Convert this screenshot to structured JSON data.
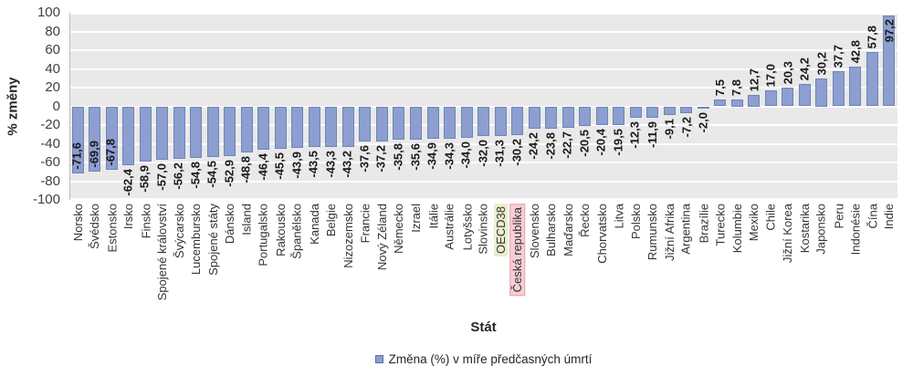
{
  "chart_data": {
    "type": "bar",
    "title": "",
    "xlabel": "Stát",
    "ylabel": "% změny",
    "ylim": [
      -100,
      100
    ],
    "yticks": [
      100,
      80,
      60,
      40,
      20,
      0,
      -20,
      -40,
      -60,
      -80,
      -100
    ],
    "grid": "horizontal-white-on-gray",
    "legend": [
      "Změna (%) v míře předčasných úmrtí"
    ],
    "legend_position": "bottom-center",
    "value_label_decimal": ",",
    "categories": [
      "Norsko",
      "Švédsko",
      "Estonsko",
      "Irsko",
      "Finsko",
      "Spojené království",
      "Švýcarsko",
      "Lucembursko",
      "Spojené státy",
      "Dánsko",
      "Island",
      "Portugalsko",
      "Rakousko",
      "Španělsko",
      "Kanada",
      "Belgie",
      "Nizozemsko",
      "Francie",
      "Nový Zéland",
      "Německo",
      "Izrael",
      "Itálie",
      "Austrálie",
      "Lotyšsko",
      "Slovinsko",
      "OECD38",
      "Česká republika",
      "Slovensko",
      "Bulharsko",
      "Maďarsko",
      "Řecko",
      "Chorvatsko",
      "Litva",
      "Polsko",
      "Rumunsko",
      "Jižní Afrika",
      "Argentina",
      "Brazílie",
      "Turecko",
      "Kolumbie",
      "Mexiko",
      "Chile",
      "Jižní Korea",
      "Kostarika",
      "Japonsko",
      "Peru",
      "Indonésie",
      "Čína",
      "Indie"
    ],
    "values": [
      -71.6,
      -69.9,
      -67.8,
      -62.4,
      -58.9,
      -57.0,
      -56.2,
      -54.8,
      -54.5,
      -52.9,
      -48.8,
      -46.4,
      -45.5,
      -43.9,
      -43.5,
      -43.3,
      -43.2,
      -37.6,
      -37.2,
      -35.8,
      -35.6,
      -34.9,
      -34.3,
      -34.0,
      -32.0,
      -31.3,
      -30.2,
      -24.2,
      -23.8,
      -22.7,
      -20.5,
      -20.4,
      -19.5,
      -12.3,
      -11.9,
      -9.1,
      -7.2,
      -2.0,
      7.5,
      7.8,
      12.7,
      17.0,
      20.3,
      24.2,
      30.2,
      37.7,
      42.8,
      57.8,
      97.2
    ],
    "highlights": [
      {
        "category": "OECD38",
        "bg": "#eaeecb",
        "border": ""
      },
      {
        "category": "Česká republika",
        "bg": "#f6ced5",
        "border": "#e9a4ae"
      }
    ]
  },
  "colors": {
    "bar_fill": "#8d9ed0",
    "bar_border": "#7183b8",
    "plot_bg": "#e9e9e9",
    "gridline": "#ffffff",
    "axis_line": "#bdbdbd",
    "tick_text": "#404040"
  }
}
